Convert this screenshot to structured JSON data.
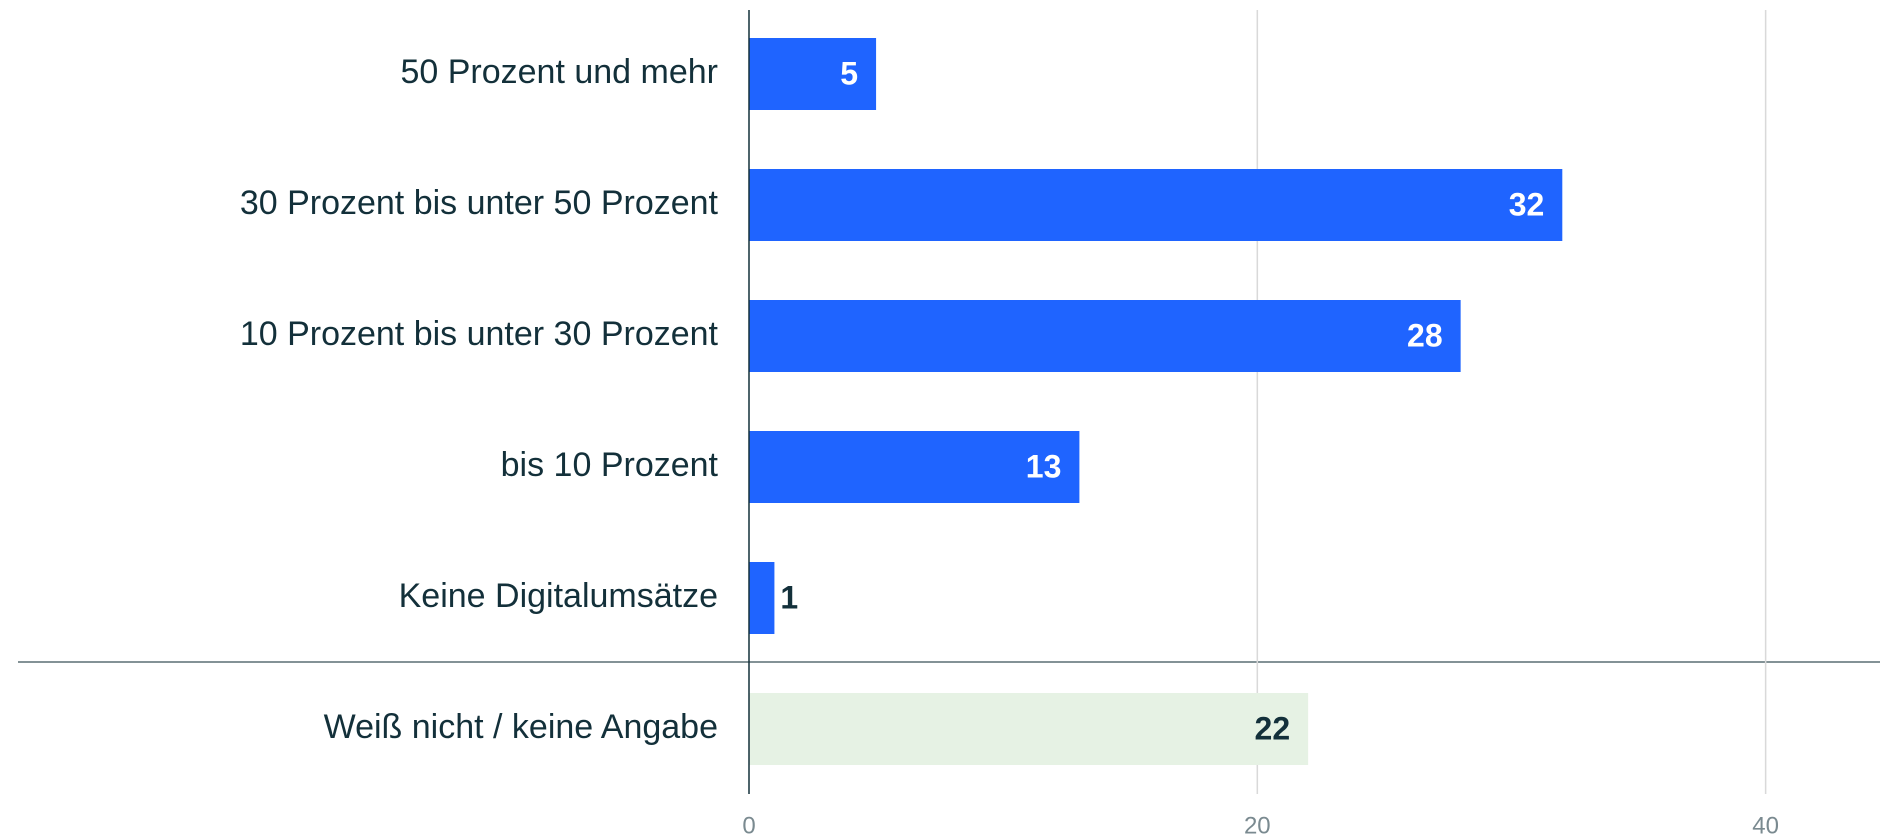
{
  "chart_data": {
    "type": "bar",
    "orientation": "horizontal",
    "categories": [
      "50 Prozent und mehr",
      "30 Prozent bis unter 50 Prozent",
      "10 Prozent bis unter 30 Prozent",
      "bis 10 Prozent",
      "Keine Digitalumsätze",
      "Weiß nicht / keine Angabe"
    ],
    "values": [
      5,
      32,
      28,
      13,
      1,
      22
    ],
    "colors": [
      "#1f64ff",
      "#1f64ff",
      "#1f64ff",
      "#1f64ff",
      "#1f64ff",
      "#e6f2e4"
    ],
    "xlim": [
      0,
      44.5
    ],
    "xticks": [
      0,
      20,
      40
    ],
    "grid": true
  }
}
